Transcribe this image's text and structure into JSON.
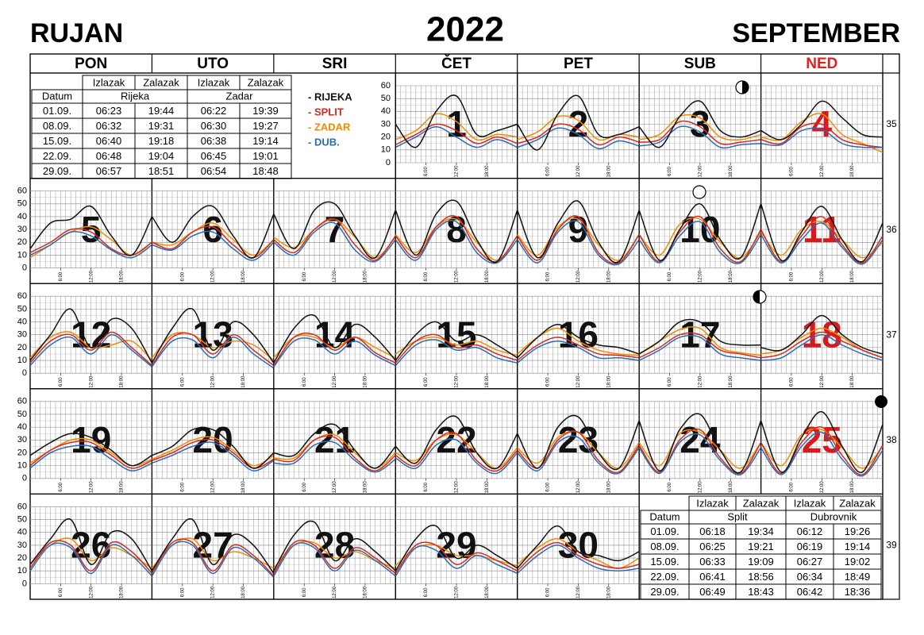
{
  "header": {
    "left": "RUJAN",
    "year": "2022",
    "right": "SEPTEMBER"
  },
  "weekdays": [
    "PON",
    "UTO",
    "SRI",
    "ČET",
    "PET",
    "SUB",
    "NED"
  ],
  "week_numbers": [
    35,
    36,
    37,
    38,
    39
  ],
  "stations": [
    {
      "name": "- RIJEKA",
      "color": "#111111"
    },
    {
      "name": "- SPLIT",
      "color": "#d42a20"
    },
    {
      "name": "- ZADAR",
      "color": "#f08c00"
    },
    {
      "name": "- DUB.",
      "color": "#2a6db5"
    }
  ],
  "ylim": [
    0,
    60
  ],
  "yticks": [
    0,
    10,
    20,
    30,
    40,
    50,
    60
  ],
  "xlim": [
    0,
    24
  ],
  "xticks": [
    {
      "value": 6,
      "label": "6:00"
    },
    {
      "value": 12,
      "label": "12:00"
    },
    {
      "value": 18,
      "label": "18:00"
    }
  ],
  "sample_hours": [
    0,
    4,
    8,
    12,
    16,
    20,
    24
  ],
  "days": [
    {
      "day": 1,
      "series": [
        [
          30,
          12,
          40,
          52,
          22,
          25,
          30
        ],
        [
          14,
          22,
          30,
          25,
          15,
          20,
          15
        ],
        [
          18,
          25,
          38,
          32,
          18,
          22,
          20
        ],
        [
          12,
          20,
          28,
          20,
          12,
          18,
          12
        ]
      ]
    },
    {
      "day": 2,
      "series": [
        [
          30,
          10,
          38,
          52,
          22,
          22,
          28
        ],
        [
          15,
          20,
          30,
          26,
          14,
          20,
          16
        ],
        [
          18,
          24,
          36,
          33,
          18,
          22,
          20
        ],
        [
          12,
          18,
          27,
          22,
          11,
          17,
          13
        ]
      ]
    },
    {
      "day": 3,
      "series": [
        [
          28,
          12,
          36,
          48,
          25,
          20,
          25
        ],
        [
          16,
          18,
          32,
          28,
          15,
          16,
          18
        ],
        [
          18,
          22,
          36,
          35,
          20,
          18,
          22
        ],
        [
          13,
          16,
          28,
          24,
          12,
          14,
          15
        ]
      ]
    },
    {
      "day": 4,
      "series": [
        [
          25,
          18,
          30,
          48,
          35,
          22,
          20
        ],
        [
          18,
          15,
          28,
          30,
          18,
          14,
          12
        ],
        [
          20,
          18,
          32,
          38,
          22,
          15,
          8
        ],
        [
          15,
          14,
          25,
          26,
          15,
          12,
          12
        ]
      ]
    },
    {
      "day": 5,
      "series": [
        [
          15,
          35,
          38,
          48,
          25,
          10,
          40
        ],
        [
          12,
          20,
          30,
          28,
          15,
          10,
          20
        ],
        [
          8,
          18,
          28,
          32,
          22,
          10,
          20
        ],
        [
          10,
          18,
          28,
          25,
          14,
          8,
          18
        ]
      ]
    },
    {
      "day": 6,
      "series": [
        [
          40,
          20,
          40,
          48,
          25,
          8,
          42
        ],
        [
          20,
          15,
          28,
          32,
          18,
          8,
          22
        ],
        [
          20,
          18,
          28,
          35,
          22,
          10,
          22
        ],
        [
          18,
          14,
          25,
          28,
          15,
          6,
          20
        ]
      ]
    },
    {
      "day": 7,
      "series": [
        [
          42,
          15,
          45,
          50,
          25,
          8,
          45
        ],
        [
          22,
          12,
          30,
          38,
          18,
          6,
          25
        ],
        [
          24,
          16,
          30,
          38,
          24,
          8,
          24
        ],
        [
          20,
          10,
          28,
          35,
          14,
          5,
          22
        ]
      ]
    },
    {
      "day": 8,
      "series": [
        [
          45,
          10,
          42,
          52,
          22,
          5,
          45
        ],
        [
          25,
          8,
          32,
          40,
          15,
          5,
          25
        ],
        [
          26,
          12,
          32,
          38,
          20,
          6,
          25
        ],
        [
          22,
          6,
          30,
          36,
          12,
          4,
          22
        ]
      ]
    },
    {
      "day": 9,
      "series": [
        [
          45,
          8,
          35,
          52,
          20,
          5,
          45
        ],
        [
          25,
          6,
          30,
          40,
          12,
          4,
          26
        ],
        [
          26,
          10,
          32,
          38,
          18,
          6,
          26
        ],
        [
          22,
          4,
          28,
          36,
          10,
          3,
          22
        ]
      ]
    },
    {
      "day": 10,
      "series": [
        [
          45,
          6,
          30,
          50,
          22,
          8,
          50
        ],
        [
          26,
          5,
          28,
          40,
          15,
          5,
          30
        ],
        [
          26,
          10,
          34,
          38,
          20,
          8,
          28
        ],
        [
          22,
          4,
          25,
          36,
          12,
          4,
          26
        ]
      ]
    },
    {
      "day": 11,
      "series": [
        [
          50,
          6,
          28,
          48,
          22,
          5,
          35
        ],
        [
          30,
          5,
          25,
          40,
          18,
          4,
          25
        ],
        [
          28,
          10,
          30,
          36,
          22,
          8,
          20
        ],
        [
          26,
          4,
          22,
          35,
          16,
          3,
          22
        ]
      ]
    },
    {
      "day": 12,
      "series": [
        [
          10,
          30,
          50,
          20,
          42,
          35,
          8
        ],
        [
          8,
          25,
          30,
          18,
          32,
          20,
          6
        ],
        [
          12,
          28,
          32,
          20,
          22,
          25,
          10
        ],
        [
          6,
          22,
          28,
          15,
          30,
          18,
          5
        ]
      ]
    },
    {
      "day": 13,
      "series": [
        [
          8,
          35,
          50,
          18,
          40,
          30,
          8
        ],
        [
          6,
          28,
          30,
          15,
          30,
          18,
          6
        ],
        [
          12,
          30,
          30,
          20,
          25,
          22,
          10
        ],
        [
          5,
          25,
          26,
          12,
          28,
          15,
          4
        ]
      ]
    },
    {
      "day": 14,
      "series": [
        [
          8,
          35,
          45,
          20,
          38,
          28,
          10
        ],
        [
          6,
          28,
          30,
          18,
          28,
          16,
          8
        ],
        [
          12,
          28,
          28,
          20,
          28,
          20,
          12
        ],
        [
          5,
          25,
          26,
          15,
          25,
          14,
          6
        ]
      ]
    },
    {
      "day": 15,
      "series": [
        [
          10,
          30,
          40,
          25,
          30,
          22,
          12
        ],
        [
          8,
          25,
          30,
          20,
          22,
          15,
          10
        ],
        [
          15,
          25,
          28,
          22,
          25,
          18,
          14
        ],
        [
          6,
          22,
          26,
          18,
          20,
          12,
          8
        ]
      ]
    },
    {
      "day": 16,
      "series": [
        [
          12,
          28,
          38,
          28,
          22,
          20,
          15
        ],
        [
          10,
          22,
          28,
          22,
          15,
          14,
          12
        ],
        [
          15,
          28,
          35,
          25,
          18,
          15,
          14
        ],
        [
          8,
          20,
          25,
          20,
          12,
          12,
          10
        ]
      ]
    },
    {
      "day": 17,
      "series": [
        [
          15,
          25,
          40,
          40,
          25,
          22,
          22
        ],
        [
          12,
          20,
          30,
          30,
          18,
          15,
          12
        ],
        [
          15,
          25,
          34,
          35,
          20,
          16,
          14
        ],
        [
          10,
          18,
          28,
          28,
          15,
          12,
          10
        ]
      ]
    },
    {
      "day": 18,
      "series": [
        [
          20,
          18,
          30,
          45,
          30,
          20,
          15
        ],
        [
          12,
          15,
          25,
          32,
          25,
          18,
          12
        ],
        [
          15,
          18,
          28,
          35,
          28,
          18,
          12
        ],
        [
          10,
          12,
          22,
          30,
          22,
          15,
          10
        ]
      ]
    },
    {
      "day": 19,
      "series": [
        [
          18,
          28,
          35,
          32,
          22,
          10,
          18
        ],
        [
          10,
          22,
          28,
          28,
          18,
          8,
          14
        ],
        [
          12,
          22,
          30,
          30,
          20,
          10,
          15
        ],
        [
          8,
          20,
          25,
          25,
          15,
          6,
          12
        ]
      ]
    },
    {
      "day": 20,
      "series": [
        [
          18,
          25,
          38,
          38,
          25,
          8,
          20
        ],
        [
          14,
          20,
          28,
          30,
          20,
          8,
          15
        ],
        [
          15,
          22,
          30,
          32,
          22,
          10,
          18
        ],
        [
          12,
          18,
          25,
          28,
          18,
          6,
          14
        ]
      ]
    },
    {
      "day": 21,
      "series": [
        [
          20,
          18,
          35,
          42,
          22,
          8,
          25
        ],
        [
          15,
          14,
          30,
          32,
          16,
          6,
          18
        ],
        [
          16,
          16,
          30,
          34,
          20,
          8,
          20
        ],
        [
          12,
          12,
          26,
          28,
          14,
          5,
          15
        ]
      ]
    },
    {
      "day": 22,
      "series": [
        [
          25,
          12,
          38,
          48,
          20,
          8,
          35
        ],
        [
          18,
          10,
          30,
          35,
          14,
          6,
          22
        ],
        [
          20,
          14,
          30,
          34,
          20,
          8,
          24
        ],
        [
          16,
          8,
          26,
          30,
          12,
          4,
          20
        ]
      ]
    },
    {
      "day": 23,
      "series": [
        [
          35,
          8,
          40,
          48,
          20,
          8,
          45
        ],
        [
          22,
          8,
          30,
          36,
          14,
          5,
          26
        ],
        [
          24,
          12,
          32,
          36,
          20,
          8,
          28
        ],
        [
          20,
          6,
          28,
          32,
          12,
          4,
          24
        ]
      ]
    },
    {
      "day": 24,
      "series": [
        [
          45,
          6,
          38,
          50,
          22,
          5,
          45
        ],
        [
          26,
          5,
          30,
          38,
          16,
          4,
          28
        ],
        [
          28,
          10,
          35,
          36,
          22,
          8,
          28
        ],
        [
          24,
          4,
          28,
          34,
          14,
          3,
          24
        ]
      ]
    },
    {
      "day": 25,
      "series": [
        [
          45,
          5,
          32,
          52,
          25,
          5,
          42
        ],
        [
          28,
          4,
          28,
          40,
          18,
          3,
          26
        ],
        [
          28,
          10,
          34,
          38,
          24,
          8,
          25
        ],
        [
          24,
          3,
          25,
          36,
          15,
          2,
          22
        ]
      ]
    },
    {
      "day": 26,
      "series": [
        [
          15,
          35,
          50,
          15,
          40,
          35,
          10
        ],
        [
          12,
          32,
          30,
          10,
          32,
          25,
          8
        ],
        [
          15,
          30,
          35,
          18,
          28,
          22,
          12
        ],
        [
          10,
          30,
          28,
          8,
          30,
          22,
          6
        ]
      ]
    },
    {
      "day": 27,
      "series": [
        [
          10,
          35,
          50,
          15,
          38,
          30,
          8
        ],
        [
          8,
          32,
          32,
          10,
          30,
          22,
          6
        ],
        [
          12,
          30,
          35,
          18,
          25,
          20,
          12
        ],
        [
          6,
          30,
          30,
          8,
          28,
          20,
          5
        ]
      ]
    },
    {
      "day": 28,
      "series": [
        [
          10,
          38,
          48,
          18,
          35,
          25,
          10
        ],
        [
          8,
          32,
          30,
          12,
          28,
          20,
          8
        ],
        [
          12,
          30,
          32,
          20,
          25,
          18,
          12
        ],
        [
          6,
          30,
          28,
          10,
          26,
          18,
          6
        ]
      ]
    },
    {
      "day": 29,
      "series": [
        [
          10,
          35,
          45,
          20,
          30,
          22,
          12
        ],
        [
          8,
          30,
          30,
          15,
          24,
          18,
          10
        ],
        [
          14,
          28,
          30,
          22,
          22,
          18,
          14
        ],
        [
          6,
          28,
          26,
          12,
          22,
          15,
          8
        ]
      ]
    },
    {
      "day": 30,
      "series": [
        [
          12,
          30,
          45,
          25,
          22,
          18,
          25
        ],
        [
          10,
          25,
          32,
          22,
          15,
          12,
          15
        ],
        [
          15,
          28,
          35,
          25,
          18,
          12,
          20
        ],
        [
          8,
          22,
          30,
          20,
          12,
          10,
          12
        ]
      ]
    }
  ],
  "sun_tables": [
    {
      "col_headers": [
        "Izlazak",
        "Zalazak",
        "Izlazak",
        "Zalazak"
      ],
      "datum": "Datum",
      "places": [
        "Rijeka",
        "Zadar"
      ],
      "rows": [
        [
          "01.09.",
          "06:23",
          "19:44",
          "06:22",
          "19:39"
        ],
        [
          "08.09.",
          "06:32",
          "19:31",
          "06:30",
          "19:27"
        ],
        [
          "15.09.",
          "06:40",
          "19:18",
          "06:38",
          "19:14"
        ],
        [
          "22.09.",
          "06:48",
          "19:04",
          "06:45",
          "19:01"
        ],
        [
          "29.09.",
          "06:57",
          "18:51",
          "06:54",
          "18:48"
        ]
      ]
    },
    {
      "col_headers": [
        "Izlazak",
        "Zalazak",
        "Izlazak",
        "Zalazak"
      ],
      "datum": "Datum",
      "places": [
        "Split",
        "Dubrovnik"
      ],
      "rows": [
        [
          "01.09.",
          "06:18",
          "19:34",
          "06:12",
          "19:26"
        ],
        [
          "08.09.",
          "06:25",
          "19:21",
          "06:19",
          "19:14"
        ],
        [
          "15.09.",
          "06:33",
          "19:09",
          "06:27",
          "19:02"
        ],
        [
          "22.09.",
          "06:41",
          "18:56",
          "06:34",
          "18:49"
        ],
        [
          "29.09.",
          "06:49",
          "18:43",
          "06:42",
          "18:36"
        ]
      ]
    }
  ]
}
